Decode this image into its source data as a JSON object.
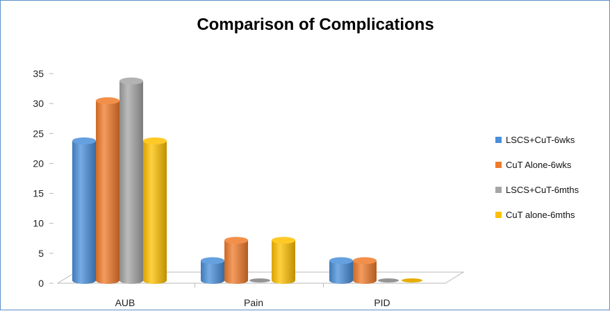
{
  "chart_data": {
    "type": "bar",
    "title": "Comparison  of Complications",
    "xlabel": "",
    "ylabel": "",
    "categories": [
      "AUB",
      "Pain",
      "PID"
    ],
    "ylim": [
      0,
      35
    ],
    "yticks": [
      0,
      5,
      10,
      15,
      20,
      25,
      30,
      35
    ],
    "series": [
      {
        "name": "LSCS+CuT-6wks",
        "values": [
          23.3,
          3.3,
          3.3
        ],
        "color": "#4a8fd9"
      },
      {
        "name": "CuT Alone-6wks",
        "values": [
          30.0,
          6.7,
          3.3
        ],
        "color": "#f07b2a"
      },
      {
        "name": "LSCS+CuT-6mths",
        "values": [
          33.3,
          0,
          0
        ],
        "color": "#a5a5a5"
      },
      {
        "name": "CuT alone-6mths",
        "values": [
          23.3,
          6.7,
          0
        ],
        "color": "#ffc000"
      }
    ],
    "legend_position": "right",
    "grid": false,
    "style": "3d-cylinder"
  }
}
